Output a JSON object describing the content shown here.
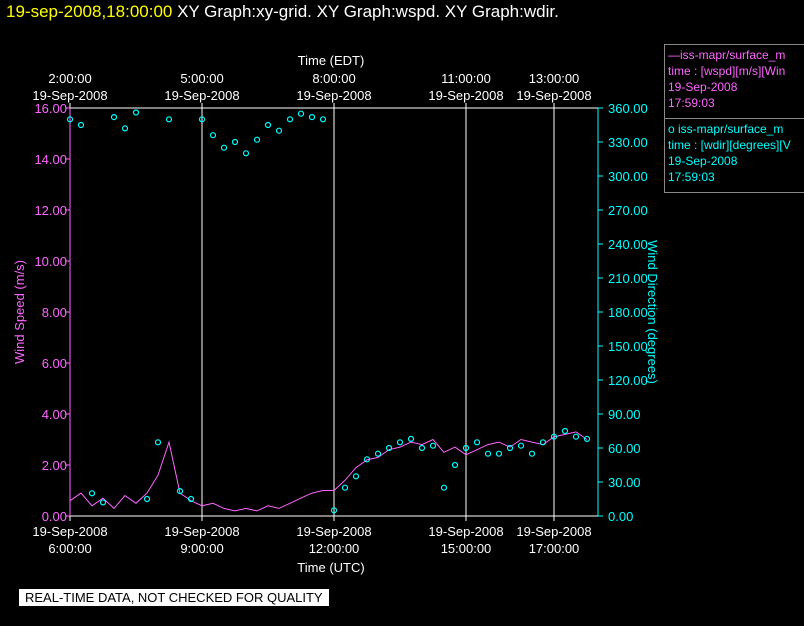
{
  "header": {
    "datetime": "19-sep-2008,18:00:00",
    "graphs": " XY Graph:xy-grid.  XY Graph:wspd.  XY Graph:wdir."
  },
  "qc_label": "REAL-TIME DATA, NOT CHECKED FOR QUALITY",
  "legend": {
    "wspd": [
      "—iss-mapr/surface_m",
      "time : [wspd][m/s][Win",
      "19-Sep-2008",
      "17:59:03"
    ],
    "wdir": [
      "o  iss-mapr/surface_m",
      "time : [wdir][degrees][V",
      "19-Sep-2008",
      "17:59:03"
    ]
  },
  "colors": {
    "wspd": "#ff66ff",
    "wdir": "#00ffff",
    "grid": "#ffffff",
    "background": "#000000"
  },
  "chart_data": {
    "type": "line",
    "top_axis": {
      "title": "Time (EDT)",
      "ticks": [
        {
          "hour_utc": 6,
          "l1": "2:00:00",
          "l2": "19-Sep-2008"
        },
        {
          "hour_utc": 9,
          "l1": "5:00:00",
          "l2": "19-Sep-2008"
        },
        {
          "hour_utc": 12,
          "l1": "8:00:00",
          "l2": "19-Sep-2008"
        },
        {
          "hour_utc": 15,
          "l1": "11:00:00",
          "l2": "19-Sep-2008"
        },
        {
          "hour_utc": 17,
          "l1": "13:00:00",
          "l2": "19-Sep-2008"
        }
      ]
    },
    "bottom_axis": {
      "title": "Time (UTC)",
      "ticks": [
        {
          "hour_utc": 6,
          "l1": "19-Sep-2008",
          "l2": "6:00:00"
        },
        {
          "hour_utc": 9,
          "l1": "19-Sep-2008",
          "l2": "9:00:00"
        },
        {
          "hour_utc": 12,
          "l1": "19-Sep-2008",
          "l2": "12:00:00"
        },
        {
          "hour_utc": 15,
          "l1": "19-Sep-2008",
          "l2": "15:00:00"
        },
        {
          "hour_utc": 17,
          "l1": "19-Sep-2008",
          "l2": "17:00:00"
        }
      ],
      "xlim": [
        6.0,
        18.0
      ]
    },
    "left_axis": {
      "title": "Wind Speed (m/s)",
      "ylim": [
        0,
        16
      ],
      "ticks": [
        "0.00",
        "2.00",
        "4.00",
        "6.00",
        "8.00",
        "10.00",
        "12.00",
        "14.00",
        "16.00"
      ]
    },
    "right_axis": {
      "title": "Wind Direction (degrees)",
      "ylim": [
        0,
        360
      ],
      "ticks": [
        "0.00",
        "30.00",
        "60.00",
        "90.00",
        "120.00",
        "150.00",
        "180.00",
        "210.00",
        "240.00",
        "270.00",
        "300.00",
        "330.00",
        "360.00"
      ]
    },
    "grid": "vertical lines at labeled times",
    "legend_position": "right, outside plot",
    "series": [
      {
        "name": "iss-mapr/surface_m",
        "style": "line",
        "axis": "left",
        "x": [
          6.0,
          6.25,
          6.5,
          6.75,
          7.0,
          7.25,
          7.5,
          7.75,
          8.0,
          8.25,
          8.5,
          8.75,
          9.0,
          9.25,
          9.5,
          9.75,
          10.0,
          10.25,
          10.5,
          10.75,
          11.0,
          11.25,
          11.5,
          11.75,
          12.0,
          12.25,
          12.5,
          12.75,
          13.0,
          13.25,
          13.5,
          13.75,
          14.0,
          14.25,
          14.5,
          14.75,
          15.0,
          15.25,
          15.5,
          15.75,
          16.0,
          16.25,
          16.5,
          16.75,
          17.0,
          17.25,
          17.5,
          17.75
        ],
        "y": [
          0.6,
          0.9,
          0.4,
          0.7,
          0.3,
          0.8,
          0.5,
          0.9,
          1.6,
          2.9,
          0.9,
          0.6,
          0.4,
          0.5,
          0.3,
          0.2,
          0.3,
          0.2,
          0.4,
          0.3,
          0.5,
          0.7,
          0.9,
          1.0,
          1.0,
          1.4,
          1.9,
          2.2,
          2.3,
          2.6,
          2.7,
          2.9,
          2.8,
          3.0,
          2.5,
          2.7,
          2.4,
          2.6,
          2.8,
          2.9,
          2.7,
          3.0,
          2.9,
          2.8,
          3.1,
          3.2,
          3.3,
          3.0
        ]
      },
      {
        "name": "iss-mapr/surface_m",
        "style": "scatter",
        "axis": "right",
        "x": [
          6.0,
          6.25,
          6.5,
          6.75,
          7.0,
          7.25,
          7.5,
          7.75,
          8.0,
          8.25,
          8.5,
          8.75,
          9.0,
          9.25,
          9.5,
          9.75,
          10.0,
          10.25,
          10.5,
          10.75,
          11.0,
          11.25,
          11.5,
          11.75,
          12.0,
          12.25,
          12.5,
          12.75,
          13.0,
          13.25,
          13.5,
          13.75,
          14.0,
          14.25,
          14.5,
          14.75,
          15.0,
          15.25,
          15.5,
          15.75,
          16.0,
          16.25,
          16.5,
          16.75,
          17.0,
          17.25,
          17.5,
          17.75
        ],
        "y": [
          350,
          345,
          20,
          12,
          352,
          342,
          356,
          15,
          65,
          350,
          22,
          15,
          350,
          336,
          325,
          330,
          320,
          332,
          345,
          340,
          350,
          355,
          352,
          350,
          5,
          25,
          35,
          50,
          55,
          60,
          65,
          68,
          60,
          62,
          25,
          45,
          60,
          65,
          55,
          55,
          60,
          62,
          55,
          65,
          70,
          75,
          70,
          68
        ]
      }
    ]
  }
}
